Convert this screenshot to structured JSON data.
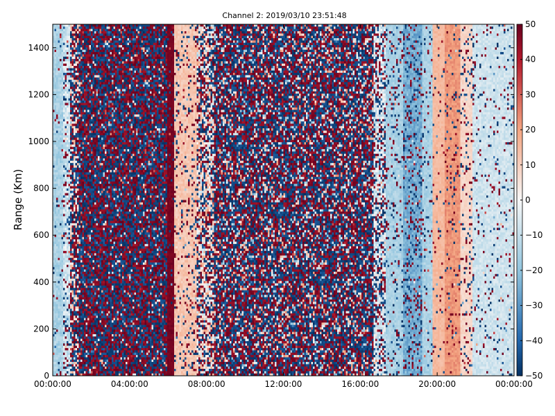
{
  "chart_data": {
    "type": "heatmap",
    "title": "Channel 2: 2019/03/10 23:51:48",
    "xlabel": "",
    "ylabel": "Range (Km)",
    "x_tick_labels": [
      "00:00:00",
      "04:00:00",
      "08:00:00",
      "12:00:00",
      "16:00:00",
      "20:00:00",
      "00:00:00"
    ],
    "x_range_hours": [
      0,
      24
    ],
    "y_ticks": [
      0,
      200,
      400,
      600,
      800,
      1000,
      1200,
      1400
    ],
    "y_range": [
      0,
      1500
    ],
    "colorbar": {
      "ticks": [
        -50,
        -40,
        -30,
        -20,
        -10,
        0,
        10,
        20,
        30,
        40,
        50
      ],
      "range": [
        -50,
        50
      ],
      "colormap": "RdBu_r",
      "colors": {
        "min": "#053061",
        "low": "#2166ac",
        "mid_low": "#92c5de",
        "mid": "#f7f7f7",
        "mid_high": "#f4a582",
        "high": "#b2182b",
        "max": "#67001f"
      }
    },
    "bands": [
      {
        "start_hour": 0.0,
        "end_hour": 0.5,
        "mean": -15,
        "noise": 10,
        "speckle": 0.05
      },
      {
        "start_hour": 0.5,
        "end_hour": 0.9,
        "mean": -8,
        "noise": 15,
        "speckle": 0.25
      },
      {
        "start_hour": 0.9,
        "end_hour": 1.35,
        "mean": 5,
        "noise": 25,
        "speckle": 0.7
      },
      {
        "start_hour": 1.35,
        "end_hour": 6.0,
        "mean": 0,
        "noise": 50,
        "speckle": 0.98
      },
      {
        "start_hour": 6.0,
        "end_hour": 6.3,
        "mean": 48,
        "noise": 3,
        "speckle": 0.1
      },
      {
        "start_hour": 6.3,
        "end_hour": 7.5,
        "mean": 12,
        "noise": 8,
        "speckle": 0.15
      },
      {
        "start_hour": 7.5,
        "end_hour": 8.4,
        "mean": 5,
        "noise": 30,
        "speckle": 0.5
      },
      {
        "start_hour": 8.4,
        "end_hour": 16.7,
        "mean": 0,
        "noise": 50,
        "speckle": 0.85
      },
      {
        "start_hour": 16.7,
        "end_hour": 17.3,
        "mean": -5,
        "noise": 20,
        "speckle": 0.4
      },
      {
        "start_hour": 17.3,
        "end_hour": 18.2,
        "mean": -15,
        "noise": 8,
        "speckle": 0.15
      },
      {
        "start_hour": 18.2,
        "end_hour": 19.2,
        "mean": -25,
        "noise": 10,
        "speckle": 0.2
      },
      {
        "start_hour": 19.2,
        "end_hour": 19.8,
        "mean": -15,
        "noise": 8,
        "speckle": 0.1
      },
      {
        "start_hour": 19.8,
        "end_hour": 20.4,
        "mean": 15,
        "noise": 5,
        "speckle": 0.05
      },
      {
        "start_hour": 20.4,
        "end_hour": 21.2,
        "mean": 22,
        "noise": 6,
        "speckle": 0.1
      },
      {
        "start_hour": 21.2,
        "end_hour": 21.8,
        "mean": 8,
        "noise": 5,
        "speckle": 0.15
      },
      {
        "start_hour": 21.8,
        "end_hour": 24.0,
        "mean": -8,
        "noise": 8,
        "speckle": 0.08
      }
    ],
    "grid": false,
    "legend": "colorbar-right"
  }
}
